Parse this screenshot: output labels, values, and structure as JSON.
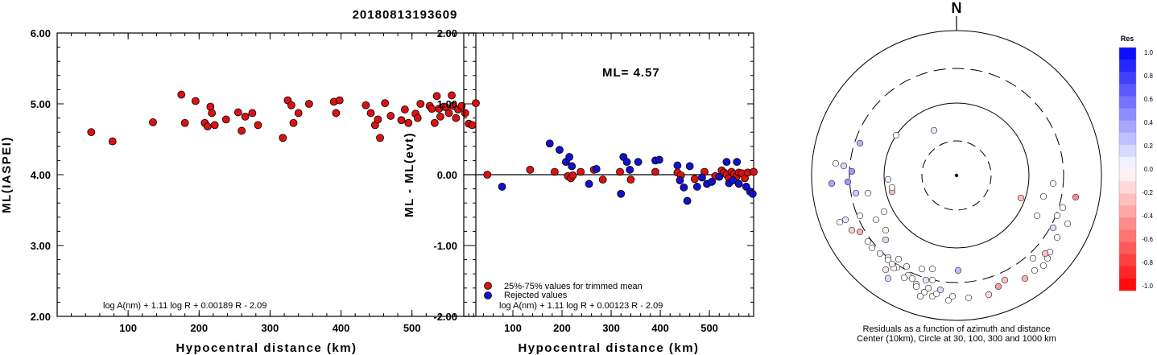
{
  "title": "20180813193609",
  "colors": {
    "red": "#dd1111",
    "blue": "#1111cc",
    "black": "#000000"
  },
  "chart_data": [
    {
      "type": "scatter",
      "xlabel": "Hypocentral distance (km)",
      "ylabel": "ML(IASPEI)",
      "xlim": [
        0,
        590
      ],
      "ylim": [
        2.0,
        6.0
      ],
      "xticks": [
        "100",
        "200",
        "300",
        "400",
        "500"
      ],
      "yticks": [
        "2.00",
        "3.00",
        "4.00",
        "5.00",
        "6.00"
      ],
      "formula": "log A(nm) + 1.11 log R + 0.00189 R - 2.09",
      "series": [
        {
          "color": "red",
          "points": [
            [
              48,
              4.6
            ],
            [
              78,
              4.47
            ],
            [
              135,
              4.74
            ],
            [
              175,
              5.13
            ],
            [
              180,
              4.73
            ],
            [
              195,
              5.04
            ],
            [
              208,
              4.73
            ],
            [
              212,
              4.68
            ],
            [
              216,
              4.96
            ],
            [
              218,
              4.87
            ],
            [
              222,
              4.7
            ],
            [
              238,
              4.78
            ],
            [
              255,
              4.88
            ],
            [
              260,
              4.62
            ],
            [
              265,
              4.82
            ],
            [
              275,
              4.87
            ],
            [
              283,
              4.7
            ],
            [
              318,
              4.52
            ],
            [
              325,
              5.05
            ],
            [
              330,
              4.98
            ],
            [
              333,
              4.73
            ],
            [
              340,
              4.87
            ],
            [
              355,
              5.0
            ],
            [
              390,
              5.03
            ],
            [
              393,
              4.87
            ],
            [
              398,
              5.05
            ],
            [
              435,
              4.98
            ],
            [
              442,
              4.87
            ],
            [
              448,
              4.7
            ],
            [
              452,
              4.78
            ],
            [
              455,
              4.52
            ],
            [
              462,
              5.01
            ],
            [
              470,
              4.83
            ],
            [
              485,
              4.77
            ],
            [
              490,
              4.92
            ],
            [
              495,
              4.73
            ],
            [
              505,
              4.86
            ],
            [
              508,
              4.8
            ],
            [
              512,
              5.0
            ],
            [
              525,
              4.97
            ],
            [
              528,
              4.93
            ],
            [
              532,
              4.73
            ],
            [
              535,
              5.11
            ],
            [
              538,
              4.93
            ],
            [
              540,
              4.82
            ],
            [
              545,
              4.96
            ],
            [
              548,
              4.95
            ],
            [
              552,
              4.87
            ],
            [
              556,
              5.12
            ],
            [
              558,
              4.97
            ],
            [
              562,
              4.8
            ],
            [
              565,
              4.92
            ],
            [
              570,
              4.97
            ],
            [
              575,
              4.87
            ],
            [
              580,
              4.72
            ],
            [
              585,
              4.7
            ],
            [
              590,
              5.01
            ]
          ]
        }
      ]
    },
    {
      "type": "scatter",
      "xlabel": "Hypocentral distance (km)",
      "ylabel": "ML - ML(evt)",
      "xlim": [
        0,
        590
      ],
      "ylim": [
        -2.0,
        2.0
      ],
      "xticks": [
        "100",
        "200",
        "300",
        "400",
        "500"
      ],
      "yticks": [
        "-2.00",
        "-1.00",
        "0.00",
        "1.00",
        "2.00"
      ],
      "formula": "log A(nm) + 1.11 log R + 0.00123 R - 2.09",
      "annotation": "ML= 4.57",
      "legend": [
        "25%-75% values for trimmed mean",
        "Rejected values"
      ],
      "series": [
        {
          "color": "red",
          "points": [
            [
              48,
              0.0
            ],
            [
              135,
              0.07
            ],
            [
              185,
              0.04
            ],
            [
              212,
              -0.02
            ],
            [
              218,
              -0.05
            ],
            [
              222,
              -0.01
            ],
            [
              238,
              0.04
            ],
            [
              265,
              0.07
            ],
            [
              283,
              -0.07
            ],
            [
              318,
              0.04
            ],
            [
              340,
              -0.07
            ],
            [
              390,
              0.04
            ],
            [
              435,
              0.03
            ],
            [
              442,
              -0.01
            ],
            [
              470,
              -0.06
            ],
            [
              490,
              0.04
            ],
            [
              512,
              -0.02
            ],
            [
              525,
              0.06
            ],
            [
              530,
              0.03
            ],
            [
              535,
              0.0
            ],
            [
              540,
              -0.05
            ],
            [
              545,
              0.04
            ],
            [
              550,
              0.01
            ],
            [
              555,
              -0.03
            ],
            [
              560,
              0.03
            ],
            [
              566,
              0.02
            ],
            [
              572,
              -0.05
            ],
            [
              578,
              0.03
            ],
            [
              590,
              0.04
            ]
          ]
        },
        {
          "color": "blue",
          "points": [
            [
              78,
              -0.17
            ],
            [
              175,
              0.44
            ],
            [
              195,
              0.35
            ],
            [
              208,
              0.18
            ],
            [
              215,
              0.25
            ],
            [
              220,
              0.12
            ],
            [
              255,
              -0.13
            ],
            [
              270,
              0.08
            ],
            [
              320,
              -0.27
            ],
            [
              325,
              0.25
            ],
            [
              332,
              0.18
            ],
            [
              338,
              0.07
            ],
            [
              355,
              0.18
            ],
            [
              390,
              0.2
            ],
            [
              398,
              0.21
            ],
            [
              435,
              0.13
            ],
            [
              440,
              -0.08
            ],
            [
              448,
              -0.18
            ],
            [
              455,
              -0.37
            ],
            [
              460,
              0.12
            ],
            [
              475,
              -0.17
            ],
            [
              485,
              -0.04
            ],
            [
              495,
              -0.13
            ],
            [
              505,
              -0.1
            ],
            [
              520,
              -0.03
            ],
            [
              535,
              0.18
            ],
            [
              540,
              -0.12
            ],
            [
              548,
              -0.08
            ],
            [
              556,
              0.18
            ],
            [
              560,
              -0.13
            ],
            [
              575,
              -0.17
            ],
            [
              583,
              -0.24
            ],
            [
              588,
              -0.27
            ]
          ]
        }
      ]
    }
  ],
  "polar": {
    "north": "N",
    "caption_line1": "Residuals as a function of azimuth and distance",
    "caption_line2": "Center (10km), Circle at 30, 100, 300 and 1000 km",
    "points": [
      [
        -28,
        -56,
        0.1
      ],
      [
        -120,
        -40,
        0.3
      ],
      [
        -75,
        -50,
        0.0
      ],
      [
        -130,
        -5,
        0.4
      ],
      [
        -140,
        -12,
        0.15
      ],
      [
        -150,
        -15,
        0.0
      ],
      [
        -135,
        8,
        0.4
      ],
      [
        -155,
        10,
        0.35
      ],
      [
        -125,
        22,
        0.2
      ],
      [
        -110,
        22,
        0.0
      ],
      [
        -80,
        20,
        -0.25
      ],
      [
        -90,
        45,
        0.0
      ],
      [
        -120,
        50,
        0.0
      ],
      [
        -100,
        55,
        0.0
      ],
      [
        -138,
        55,
        0.1
      ],
      [
        -145,
        58,
        0.0
      ],
      [
        -130,
        68,
        -0.2
      ],
      [
        -120,
        70,
        -0.3
      ],
      [
        -88,
        68,
        -0.05
      ],
      [
        -110,
        82,
        0.0
      ],
      [
        -105,
        90,
        0.0
      ],
      [
        -88,
        80,
        0.15
      ],
      [
        -95,
        97,
        0.05
      ],
      [
        -85,
        102,
        -0.05
      ],
      [
        -72,
        104,
        0.0
      ],
      [
        -74,
        114,
        0.0
      ],
      [
        -62,
        113,
        0.05
      ],
      [
        -60,
        124,
        0.05
      ],
      [
        -55,
        128,
        0.0
      ],
      [
        -50,
        135,
        0.0
      ],
      [
        -45,
        150,
        0.0
      ],
      [
        -40,
        145,
        0.0
      ],
      [
        -30,
        150,
        0.0
      ],
      [
        -25,
        147,
        0.0
      ],
      [
        -20,
        142,
        0.15
      ],
      [
        -10,
        155,
        0.0
      ],
      [
        -43,
        116,
        0.0
      ],
      [
        -50,
        138,
        0.0
      ],
      [
        -38,
        130,
        0.1
      ],
      [
        -30,
        116,
        0.0
      ],
      [
        -5,
        150,
        0.0
      ],
      [
        -78,
        115,
        0.0
      ],
      [
        -65,
        127,
        0.0
      ],
      [
        -85,
        128,
        0.15
      ],
      [
        -88,
        117,
        -0.1
      ],
      [
        -45,
        150,
        0.0
      ],
      [
        -35,
        140,
        0.05
      ],
      [
        -30,
        130,
        0.0
      ],
      [
        2,
        118,
        0.25
      ],
      [
        15,
        152,
        0.0
      ],
      [
        40,
        148,
        -0.15
      ],
      [
        52,
        138,
        -0.4
      ],
      [
        60,
        130,
        -0.25
      ],
      [
        85,
        128,
        -0.3
      ],
      [
        97,
        118,
        0.0
      ],
      [
        95,
        103,
        0.0
      ],
      [
        108,
        112,
        0.0
      ],
      [
        113,
        103,
        -0.05
      ],
      [
        116,
        95,
        0.05
      ],
      [
        110,
        97,
        -0.25
      ],
      [
        125,
        77,
        0.0
      ],
      [
        120,
        65,
        0.15
      ],
      [
        138,
        60,
        0.0
      ],
      [
        125,
        50,
        0.0
      ],
      [
        132,
        40,
        0.0
      ],
      [
        148,
        27,
        -0.45
      ],
      [
        108,
        26,
        0.0
      ],
      [
        120,
        10,
        0.0
      ],
      [
        100,
        50,
        0.0
      ],
      [
        80,
        28,
        -0.25
      ],
      [
        -80,
        15,
        0.0
      ],
      [
        -85,
        5,
        0.05
      ],
      [
        -85,
        105,
        0.0
      ],
      [
        -80,
        110,
        0.0
      ]
    ]
  },
  "colorbar": {
    "title": "Res",
    "labels": [
      "1.0",
      "0.8",
      "0.6",
      "0.4",
      "0.2",
      "0.0",
      "-0.2",
      "-0.4",
      "-0.6",
      "-0.8",
      "-1.0"
    ]
  }
}
